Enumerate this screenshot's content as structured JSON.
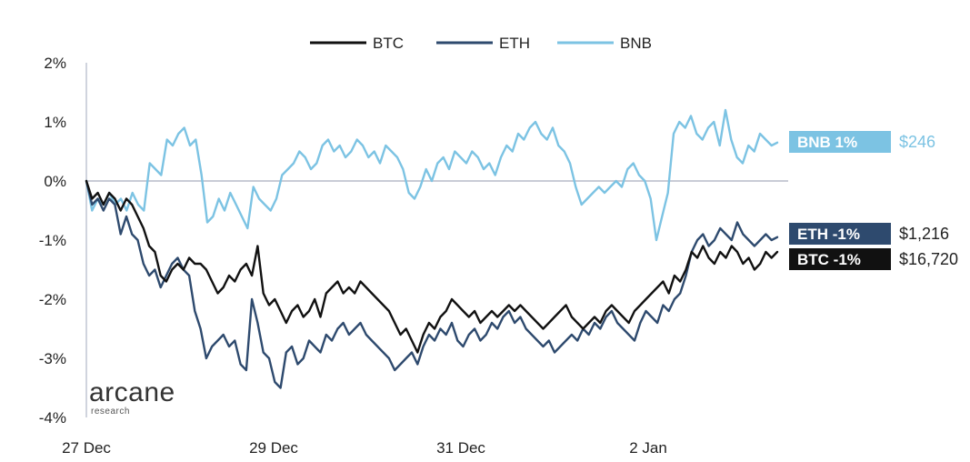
{
  "chart_data": {
    "type": "line",
    "xlabel": "",
    "ylabel": "",
    "x_ticks": [
      "27 Dec",
      "29 Dec",
      "31 Dec",
      "2 Jan"
    ],
    "x_range": [
      "27 Dec",
      "3 Jan"
    ],
    "y_ticks": [
      "2%",
      "1%",
      "0%",
      "-1%",
      "-2%",
      "-3%",
      "-4%"
    ],
    "ylim": [
      -4,
      2
    ],
    "grid": false,
    "zero_line": true,
    "legend_position": "top-center",
    "series": [
      {
        "name": "BTC",
        "color": "#111111",
        "end_label": "BTC -1%",
        "price": "$16,720",
        "values": [
          0.0,
          -0.3,
          -0.2,
          -0.4,
          -0.2,
          -0.3,
          -0.5,
          -0.3,
          -0.4,
          -0.6,
          -0.8,
          -1.1,
          -1.2,
          -1.6,
          -1.7,
          -1.5,
          -1.4,
          -1.5,
          -1.3,
          -1.4,
          -1.4,
          -1.5,
          -1.7,
          -1.9,
          -1.8,
          -1.6,
          -1.7,
          -1.5,
          -1.4,
          -1.6,
          -1.1,
          -1.9,
          -2.1,
          -2.0,
          -2.2,
          -2.4,
          -2.2,
          -2.1,
          -2.3,
          -2.2,
          -2.0,
          -2.3,
          -1.9,
          -1.8,
          -1.7,
          -1.9,
          -1.8,
          -1.9,
          -1.7,
          -1.8,
          -1.9,
          -2.0,
          -2.1,
          -2.2,
          -2.4,
          -2.6,
          -2.5,
          -2.7,
          -2.9,
          -2.6,
          -2.4,
          -2.5,
          -2.3,
          -2.2,
          -2.0,
          -2.1,
          -2.2,
          -2.3,
          -2.2,
          -2.4,
          -2.3,
          -2.2,
          -2.3,
          -2.2,
          -2.1,
          -2.2,
          -2.1,
          -2.2,
          -2.3,
          -2.4,
          -2.5,
          -2.4,
          -2.3,
          -2.2,
          -2.1,
          -2.3,
          -2.4,
          -2.5,
          -2.4,
          -2.3,
          -2.4,
          -2.2,
          -2.1,
          -2.2,
          -2.3,
          -2.4,
          -2.2,
          -2.1,
          -2.0,
          -1.9,
          -1.8,
          -1.7,
          -1.9,
          -1.6,
          -1.7,
          -1.5,
          -1.2,
          -1.3,
          -1.1,
          -1.3,
          -1.4,
          -1.2,
          -1.3,
          -1.1,
          -1.2,
          -1.4,
          -1.3,
          -1.5,
          -1.4,
          -1.2,
          -1.3,
          -1.2
        ]
      },
      {
        "name": "ETH",
        "color": "#2e4a6e",
        "end_label": "ETH -1%",
        "price": "$1,216",
        "values": [
          0.0,
          -0.4,
          -0.3,
          -0.5,
          -0.3,
          -0.4,
          -0.9,
          -0.6,
          -0.9,
          -1.0,
          -1.4,
          -1.6,
          -1.5,
          -1.8,
          -1.6,
          -1.4,
          -1.3,
          -1.5,
          -1.6,
          -2.2,
          -2.5,
          -3.0,
          -2.8,
          -2.7,
          -2.6,
          -2.8,
          -2.7,
          -3.1,
          -3.2,
          -2.0,
          -2.4,
          -2.9,
          -3.0,
          -3.4,
          -3.5,
          -2.9,
          -2.8,
          -3.1,
          -3.0,
          -2.7,
          -2.8,
          -2.9,
          -2.6,
          -2.7,
          -2.5,
          -2.4,
          -2.6,
          -2.5,
          -2.4,
          -2.6,
          -2.7,
          -2.8,
          -2.9,
          -3.0,
          -3.2,
          -3.1,
          -3.0,
          -2.9,
          -3.1,
          -2.8,
          -2.6,
          -2.7,
          -2.5,
          -2.6,
          -2.4,
          -2.7,
          -2.8,
          -2.6,
          -2.5,
          -2.7,
          -2.6,
          -2.4,
          -2.5,
          -2.3,
          -2.2,
          -2.4,
          -2.3,
          -2.5,
          -2.6,
          -2.7,
          -2.8,
          -2.7,
          -2.9,
          -2.8,
          -2.7,
          -2.6,
          -2.7,
          -2.5,
          -2.6,
          -2.4,
          -2.5,
          -2.3,
          -2.2,
          -2.4,
          -2.5,
          -2.6,
          -2.7,
          -2.4,
          -2.2,
          -2.3,
          -2.4,
          -2.1,
          -2.2,
          -2.0,
          -1.9,
          -1.6,
          -1.2,
          -1.0,
          -0.9,
          -1.1,
          -1.0,
          -0.8,
          -0.9,
          -1.0,
          -0.7,
          -0.9,
          -1.0,
          -1.1,
          -1.0,
          -0.9,
          -1.0,
          -0.95
        ]
      },
      {
        "name": "BNB",
        "color": "#7cc3e3",
        "end_label": "BNB 1%",
        "price": "$246",
        "values": [
          0.0,
          -0.5,
          -0.3,
          -0.4,
          -0.2,
          -0.4,
          -0.3,
          -0.5,
          -0.2,
          -0.4,
          -0.5,
          0.3,
          0.2,
          0.1,
          0.7,
          0.6,
          0.8,
          0.9,
          0.6,
          0.7,
          0.1,
          -0.7,
          -0.6,
          -0.3,
          -0.5,
          -0.2,
          -0.4,
          -0.6,
          -0.8,
          -0.1,
          -0.3,
          -0.4,
          -0.5,
          -0.3,
          0.1,
          0.2,
          0.3,
          0.5,
          0.4,
          0.2,
          0.3,
          0.6,
          0.7,
          0.5,
          0.6,
          0.4,
          0.5,
          0.7,
          0.6,
          0.4,
          0.5,
          0.3,
          0.6,
          0.5,
          0.4,
          0.2,
          -0.2,
          -0.3,
          -0.1,
          0.2,
          0.0,
          0.3,
          0.4,
          0.2,
          0.5,
          0.4,
          0.3,
          0.5,
          0.4,
          0.2,
          0.3,
          0.1,
          0.4,
          0.6,
          0.5,
          0.8,
          0.7,
          0.9,
          1.0,
          0.8,
          0.7,
          0.9,
          0.6,
          0.5,
          0.3,
          -0.1,
          -0.4,
          -0.3,
          -0.2,
          -0.1,
          -0.2,
          -0.1,
          0.0,
          -0.1,
          0.2,
          0.3,
          0.1,
          0.0,
          -0.3,
          -1.0,
          -0.6,
          -0.2,
          0.8,
          1.0,
          0.9,
          1.1,
          0.8,
          0.7,
          0.9,
          1.0,
          0.6,
          1.2,
          0.7,
          0.4,
          0.3,
          0.6,
          0.5,
          0.8,
          0.7,
          0.6,
          0.65
        ]
      }
    ]
  },
  "branding": {
    "name": "arcane",
    "subtitle": "research"
  }
}
